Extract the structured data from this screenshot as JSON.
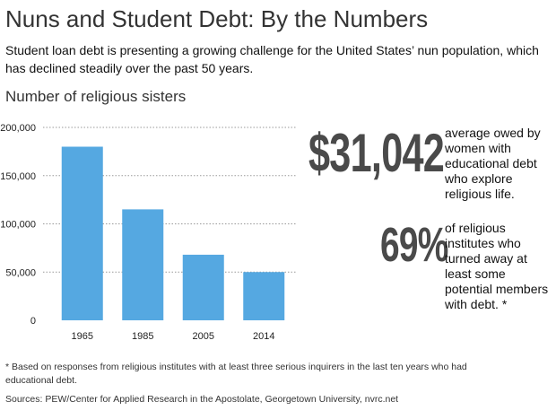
{
  "header": {
    "title": "Nuns and Student Debt: By the Numbers",
    "subtitle": "Student loan debt is presenting a growing challenge for the United States’ nun population, which has declined steadily over the past 50 years."
  },
  "chart_heading": "Number of religious sisters",
  "chart_data": {
    "type": "bar",
    "title": "Number of religious sisters",
    "categories": [
      "1965",
      "1985",
      "2005",
      "2014"
    ],
    "values": [
      180000,
      115000,
      68000,
      50000
    ],
    "ylim": [
      0,
      200000
    ],
    "yticks": [
      0,
      50000,
      100000,
      150000,
      200000
    ],
    "ytick_labels": [
      "0",
      "50,000",
      "100,000",
      "150,000",
      "200,000"
    ],
    "xlabel": "",
    "ylabel": "",
    "grid": "horizontal dotted",
    "bar_color": "#55a8e1"
  },
  "stats": [
    {
      "value": "$31,042",
      "text": "average owed by women with educational debt who explore religious life."
    },
    {
      "value": "69%",
      "text": "of religious institutes who turned away at least some potential members with debt. *"
    }
  ],
  "footnote": "* Based on responses from religious institutes with at least three serious inquirers in the last ten years who had educational debt.",
  "sources": "Sources: PEW/Center for Applied Research in the Apostolate, Georgetown University, nvrc.net"
}
